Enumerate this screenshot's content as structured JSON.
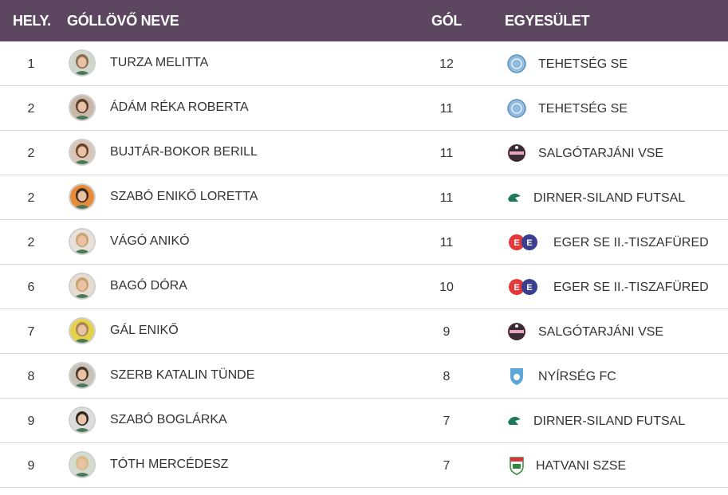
{
  "header": {
    "rank": "HELY.",
    "name": "GÓLLÖVŐ NEVE",
    "goals": "GÓL",
    "club": "EGYESÜLET"
  },
  "rows": [
    {
      "rank": "1",
      "name": "TURZA MELITTA",
      "goals": "12",
      "club": "TEHETSÉG SE",
      "club_icon": "tehetseg-se-logo",
      "avatar_bg": "#cfd7cc",
      "hair": "#8a6a4a"
    },
    {
      "rank": "2",
      "name": "ÁDÁM RÉKA ROBERTA",
      "goals": "11",
      "club": "TEHETSÉG SE",
      "club_icon": "tehetseg-se-logo",
      "avatar_bg": "#c9b8a8",
      "hair": "#5a3d2b"
    },
    {
      "rank": "2",
      "name": "BUJTÁR-BOKOR BERILL",
      "goals": "11",
      "club": "SALGÓTARJÁNI VSE",
      "club_icon": "salgotarjani-vse-logo",
      "avatar_bg": "#d8c6b8",
      "hair": "#6b4226"
    },
    {
      "rank": "2",
      "name": "SZABÓ ENIKŐ LORETTA",
      "goals": "11",
      "club": "DIRNER-SILAND FUTSAL",
      "club_icon": "dirner-siland-logo",
      "avatar_bg": "#e78a3a",
      "hair": "#3c2a1e"
    },
    {
      "rank": "2",
      "name": "VÁGÓ ANIKÓ",
      "goals": "11",
      "club": "EGER SE II.-TISZAFÜRED",
      "club_icon": "eger-se-logo",
      "avatar_bg": "#e8e1da",
      "hair": "#c9a574"
    },
    {
      "rank": "6",
      "name": "BAGÓ DÓRA",
      "goals": "10",
      "club": "EGER SE II.-TISZAFÜRED",
      "club_icon": "eger-se-logo",
      "avatar_bg": "#e6ddd0",
      "hair": "#c8a06a"
    },
    {
      "rank": "7",
      "name": "GÁL ENIKŐ",
      "goals": "9",
      "club": "SALGÓTARJÁNI VSE",
      "club_icon": "salgotarjani-vse-logo",
      "avatar_bg": "#e5d24a",
      "hair": "#a8845a"
    },
    {
      "rank": "8",
      "name": "SZERB KATALIN TÜNDE",
      "goals": "8",
      "club": "NYÍRSÉG FC",
      "club_icon": "nyirseg-fc-logo",
      "avatar_bg": "#c8c2b6",
      "hair": "#4a3526"
    },
    {
      "rank": "9",
      "name": "SZABÓ BOGLÁRKA",
      "goals": "7",
      "club": "DIRNER-SILAND FUTSAL",
      "club_icon": "dirner-siland-logo",
      "avatar_bg": "#dcdcdc",
      "hair": "#2e2520"
    },
    {
      "rank": "9",
      "name": "TÓTH MERCÉDESZ",
      "goals": "7",
      "club": "HATVANI SZSE",
      "club_icon": "hatvani-szse-logo",
      "avatar_bg": "#d4dccf",
      "hair": "#d9bb86"
    }
  ],
  "colors": {
    "header_bg": "#5c4660",
    "header_text": "#ffffff",
    "row_border": "#d6d6d6"
  }
}
